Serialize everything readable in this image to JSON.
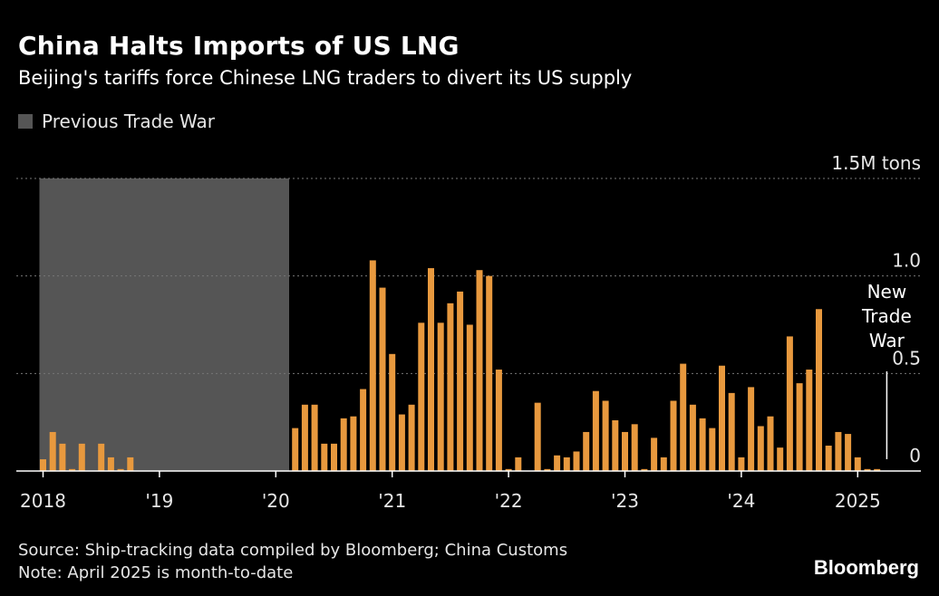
{
  "header": {
    "title": "China Halts Imports of US LNG",
    "subtitle": "Beijing's tariffs force Chinese LNG traders to divert its US supply",
    "legend_label": "Previous Trade War"
  },
  "footer": {
    "source": "Source: Ship-tracking data compiled by Bloomberg; China Customs",
    "note": "Note: April 2025 is month-to-date",
    "brand": "Bloomberg"
  },
  "colors": {
    "bar": "#E8993E",
    "shade": "#555555",
    "background": "#000000",
    "grid": "#777777"
  },
  "chart_data": {
    "type": "bar",
    "title": "China Halts Imports of US LNG",
    "subtitle": "Beijing's tariffs force Chinese LNG traders to divert its US supply",
    "unit_label": "1.5M tons",
    "ylim": [
      0,
      1.5
    ],
    "y_ticks": [
      {
        "value": 0,
        "label": "0"
      },
      {
        "value": 0.5,
        "label": "0.5"
      },
      {
        "value": 1.0,
        "label": "1.0"
      },
      {
        "value": 1.5,
        "label": "1.5M tons"
      }
    ],
    "x_ticks": [
      {
        "date": "2018-01",
        "label": "2018"
      },
      {
        "date": "2019-01",
        "label": "'19"
      },
      {
        "date": "2020-01",
        "label": "'20"
      },
      {
        "date": "2021-01",
        "label": "'21"
      },
      {
        "date": "2022-01",
        "label": "'22"
      },
      {
        "date": "2023-01",
        "label": "'23"
      },
      {
        "date": "2024-01",
        "label": "'24"
      },
      {
        "date": "2025-01",
        "label": "2025"
      }
    ],
    "grid": true,
    "shaded_region": {
      "label": "Previous Trade War",
      "start": "2018-01",
      "end": "2020-02"
    },
    "annotation": {
      "text": [
        "New",
        "Trade",
        "War"
      ],
      "date": "2025-04"
    },
    "series": [
      {
        "start": "2018-01",
        "values": [
          0.06,
          0.2,
          0.14,
          0.01,
          0.14,
          0,
          0.14,
          0.07,
          0.01,
          0.07,
          0,
          0,
          0,
          0,
          0,
          0,
          0,
          0,
          0,
          0,
          0,
          0,
          0,
          0,
          0,
          0,
          0.22,
          0.34,
          0.34,
          0.14,
          0.14,
          0.27,
          0.28,
          0.42,
          1.08,
          0.94,
          0.6,
          0.29,
          0.34,
          0.76,
          1.04,
          0.76,
          0.86,
          0.92,
          0.75,
          1.03,
          1.0,
          0.52,
          0.01,
          0.07,
          0,
          0.35,
          0.01,
          0.08,
          0.07,
          0.1,
          0.2,
          0.41,
          0.36,
          0.26,
          0.2,
          0.24,
          0.01,
          0.17,
          0.07,
          0.36,
          0.55,
          0.34,
          0.27,
          0.22,
          0.54,
          0.4,
          0.07,
          0.43,
          0.23,
          0.28,
          0.12,
          0.69,
          0.45,
          0.52,
          0.83,
          0.13,
          0.2,
          0.19,
          0.07,
          0.01,
          0.01,
          0
        ]
      }
    ]
  }
}
